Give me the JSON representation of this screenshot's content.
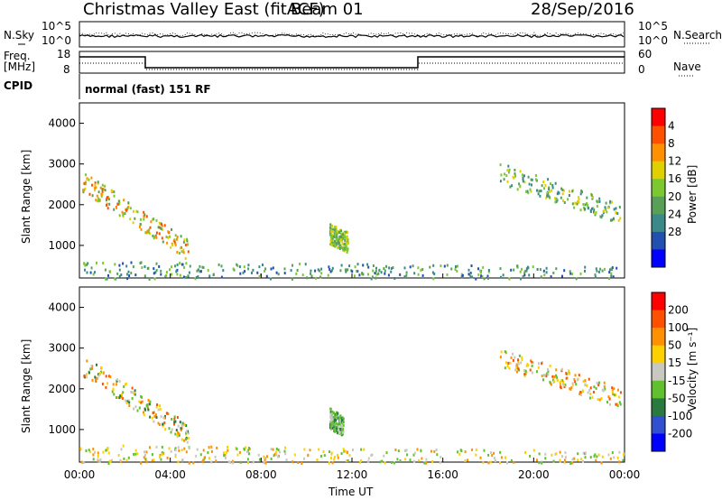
{
  "header": {
    "title": "Christmas Valley East (fitACF)",
    "beam": "Beam 01",
    "date": "28/Sep/2016"
  },
  "noise_panel": {
    "label": "N.Sky",
    "left_ticks": [
      "10^5",
      "10^0"
    ],
    "right_label": "N.Search",
    "right_ticks": [
      "10^5",
      "10^0"
    ]
  },
  "freq_panel": {
    "label_line1": "Freq.",
    "label_line2": "[MHz]",
    "left_ticks": [
      "18",
      "8"
    ],
    "right_label": "Nave",
    "right_ticks": [
      "60",
      "0"
    ]
  },
  "cpid": {
    "label": "CPID",
    "value": "normal (fast) 151 RF"
  },
  "chart_data": [
    {
      "type": "heatmap",
      "name": "power",
      "ylabel": "Slant Range [km]",
      "yticks": [
        1000,
        2000,
        3000,
        4000
      ],
      "ylim": [
        200,
        4500
      ],
      "xticks": [
        "00:00",
        "04:00",
        "08:00",
        "12:00",
        "16:00",
        "20:00",
        "00:00"
      ],
      "xlim_hours": [
        0,
        24
      ],
      "colorbar_label": "Power [dB]",
      "colorbar_ticks": [
        "4",
        "8",
        "12",
        "16",
        "20",
        "24",
        "28"
      ],
      "colorbar_colors": [
        "#0000ff",
        "#2050b0",
        "#3a8a8a",
        "#58a058",
        "#7cc830",
        "#e0d000",
        "#ff9000",
        "#ff5000",
        "#ff0000"
      ]
    },
    {
      "type": "heatmap",
      "name": "velocity",
      "ylabel": "Slant Range [km]",
      "yticks": [
        1000,
        2000,
        3000,
        4000
      ],
      "ylim": [
        200,
        4500
      ],
      "xticks": [
        "00:00",
        "04:00",
        "08:00",
        "12:00",
        "16:00",
        "20:00",
        "00:00"
      ],
      "xlim_hours": [
        0,
        24
      ],
      "xlabel": "Time UT",
      "colorbar_label": "Velocity [m s⁻¹]",
      "colorbar_ticks": [
        "200",
        "100",
        "50",
        "15",
        "-15",
        "-50",
        "-100",
        "-200"
      ],
      "colorbar_colors": [
        "#0000ff",
        "#3050d0",
        "#2a7a40",
        "#60c030",
        "#c8c8c0",
        "#ffd000",
        "#ff9000",
        "#ff5000",
        "#ff0000"
      ]
    }
  ]
}
